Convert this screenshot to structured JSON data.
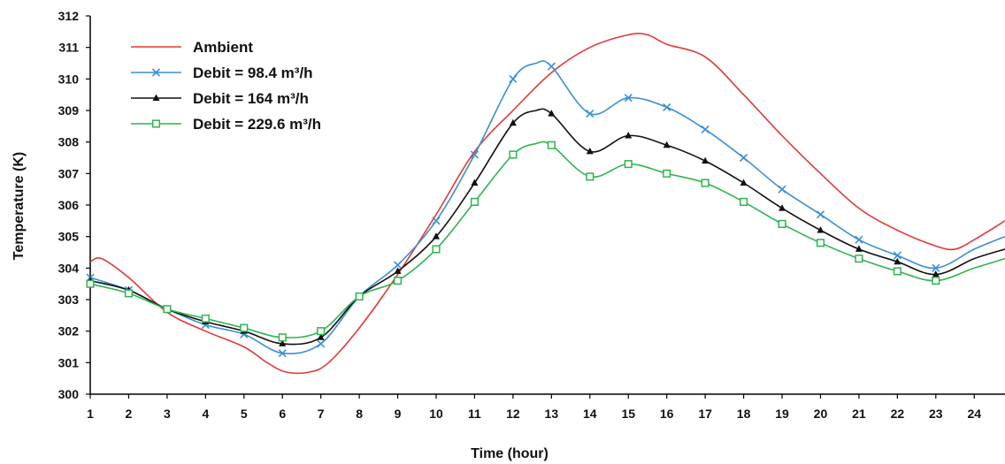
{
  "chart_data": {
    "type": "line",
    "title": "",
    "xlabel": "Time (hour)",
    "ylabel": "Temperature (K)",
    "x_ticks": [
      "1",
      "2",
      "3",
      "4",
      "5",
      "6",
      "7",
      "8",
      "9",
      "10",
      "11",
      "12",
      "13",
      "14",
      "15",
      "16",
      "17",
      "18",
      "19",
      "20",
      "21",
      "22",
      "23",
      "24"
    ],
    "y_ticks": [
      "300",
      "301",
      "302",
      "303",
      "304",
      "305",
      "306",
      "307",
      "308",
      "309",
      "310",
      "311",
      "312"
    ],
    "xlim": [
      1,
      24.8
    ],
    "ylim": [
      300,
      312
    ],
    "grid": false,
    "legend_position": "top-left",
    "series": [
      {
        "name": "Ambient",
        "color": "#e03a3a",
        "marker": "none",
        "x": [
          1,
          1.3,
          2,
          3,
          4,
          5,
          5.6,
          6.1,
          6.7,
          7.2,
          8,
          9,
          10,
          11,
          12,
          13,
          14,
          15,
          15.5,
          16,
          17,
          18,
          19,
          20,
          21,
          22,
          23,
          23.5,
          24,
          24.8
        ],
        "y": [
          304.2,
          304.3,
          303.7,
          302.6,
          302.0,
          301.5,
          301.0,
          300.7,
          300.7,
          301.0,
          302.1,
          303.8,
          305.7,
          307.7,
          309.0,
          310.2,
          311.0,
          311.4,
          311.4,
          311.1,
          310.7,
          309.5,
          308.2,
          307.0,
          305.9,
          305.2,
          304.7,
          304.6,
          304.9,
          305.5
        ]
      },
      {
        "name": "Debit = 98.4 m³/h",
        "color": "#3b8fd1",
        "marker": "x",
        "x": [
          1,
          2,
          3,
          4,
          5,
          6,
          7,
          8,
          9,
          10,
          11,
          12,
          12.6,
          13,
          14,
          15,
          16,
          17,
          18,
          19,
          20,
          21,
          22,
          23,
          24,
          24.8
        ],
        "y": [
          303.7,
          303.3,
          302.7,
          302.2,
          301.9,
          301.3,
          301.6,
          303.1,
          304.1,
          305.5,
          307.6,
          310.0,
          310.5,
          310.4,
          308.9,
          309.4,
          309.1,
          308.4,
          307.5,
          306.5,
          305.7,
          304.9,
          304.4,
          304.0,
          304.6,
          305.0
        ],
        "markers": [
          1,
          2,
          3,
          4,
          5,
          6,
          7,
          8,
          9,
          10,
          11,
          12,
          13,
          14,
          15,
          16,
          17,
          18,
          19,
          20,
          21,
          22,
          23
        ]
      },
      {
        "name": "Debit = 164 m³/h",
        "color": "#111111",
        "marker": "triangle",
        "x": [
          1,
          2,
          3,
          4,
          5,
          6,
          7,
          8,
          9,
          10,
          11,
          12,
          12.6,
          13,
          14,
          15,
          16,
          17,
          18,
          19,
          20,
          21,
          22,
          23,
          24,
          24.8
        ],
        "y": [
          303.6,
          303.3,
          302.7,
          302.3,
          302.0,
          301.6,
          301.8,
          303.1,
          303.9,
          305.0,
          306.7,
          308.6,
          309.0,
          308.9,
          307.7,
          308.2,
          307.9,
          307.4,
          306.7,
          305.9,
          305.2,
          304.6,
          304.2,
          303.8,
          304.3,
          304.6
        ],
        "markers": [
          1,
          2,
          3,
          4,
          5,
          6,
          7,
          8,
          9,
          10,
          11,
          12,
          13,
          14,
          15,
          16,
          17,
          18,
          19,
          20,
          21,
          22,
          23
        ]
      },
      {
        "name": "Debit = 229.6 m³/h",
        "color": "#2fb34f",
        "marker": "square",
        "x": [
          1,
          2,
          3,
          4,
          5,
          6,
          7,
          8,
          9,
          10,
          11,
          12,
          12.6,
          13,
          14,
          15,
          16,
          17,
          18,
          19,
          20,
          21,
          22,
          23,
          24,
          24.8
        ],
        "y": [
          303.5,
          303.2,
          302.7,
          302.4,
          302.1,
          301.8,
          302.0,
          303.1,
          303.6,
          304.6,
          306.1,
          307.6,
          307.95,
          307.9,
          306.9,
          307.3,
          307.0,
          306.7,
          306.1,
          305.4,
          304.8,
          304.3,
          303.9,
          303.6,
          304.0,
          304.3
        ],
        "markers": [
          1,
          2,
          3,
          4,
          5,
          6,
          7,
          8,
          9,
          10,
          11,
          12,
          13,
          14,
          15,
          16,
          17,
          18,
          19,
          20,
          21,
          22,
          23
        ]
      }
    ]
  }
}
